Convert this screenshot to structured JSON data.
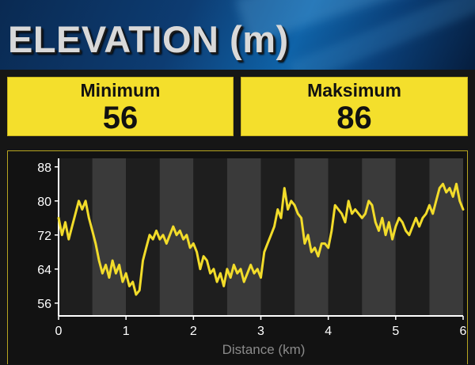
{
  "header": {
    "title": "ELEVATION (m)"
  },
  "stats": {
    "min_label": "Minimum",
    "min_value": "56",
    "max_label": "Maksimum",
    "max_value": "86"
  },
  "colors": {
    "accent": "#f4df2c",
    "line": "#f2dc2a",
    "band_dark": "#1e1e1e",
    "band_light": "#3a3a3a",
    "axis_text": "#ffffff",
    "xlabel_text": "#8a8a8a"
  },
  "chart_data": {
    "type": "line",
    "title": "",
    "xlabel": "Distance (km)",
    "ylabel": "",
    "xlim": [
      0,
      6
    ],
    "ylim": [
      53,
      90
    ],
    "xticks": [
      "0",
      "1",
      "2",
      "3",
      "4",
      "5",
      "6"
    ],
    "yticks": [
      "56",
      "64",
      "72",
      "80",
      "88"
    ],
    "grid": "alternating vertical bands every 0.5 km",
    "series": [
      {
        "x": [
          0,
          0.05,
          0.1,
          0.15,
          0.2,
          0.25,
          0.3,
          0.35,
          0.4,
          0.45,
          0.5,
          0.55,
          0.6,
          0.65,
          0.7,
          0.75,
          0.8,
          0.85,
          0.9,
          0.95,
          1.0,
          1.05,
          1.1,
          1.15,
          1.2,
          1.25,
          1.3,
          1.35,
          1.4,
          1.45,
          1.5,
          1.55,
          1.6,
          1.65,
          1.7,
          1.75,
          1.8,
          1.85,
          1.9,
          1.95,
          2.0,
          2.05,
          2.1,
          2.15,
          2.2,
          2.25,
          2.3,
          2.35,
          2.4,
          2.45,
          2.5,
          2.55,
          2.6,
          2.65,
          2.7,
          2.75,
          2.8,
          2.85,
          2.9,
          2.95,
          3.0,
          3.05,
          3.1,
          3.15,
          3.2,
          3.25,
          3.3,
          3.35,
          3.4,
          3.45,
          3.5,
          3.55,
          3.6,
          3.65,
          3.7,
          3.75,
          3.8,
          3.85,
          3.9,
          3.95,
          4.0,
          4.05,
          4.1,
          4.15,
          4.2,
          4.25,
          4.3,
          4.35,
          4.4,
          4.45,
          4.5,
          4.55,
          4.6,
          4.65,
          4.7,
          4.75,
          4.8,
          4.85,
          4.9,
          4.95,
          5.0,
          5.05,
          5.1,
          5.15,
          5.2,
          5.25,
          5.3,
          5.35,
          5.4,
          5.45,
          5.5,
          5.55,
          5.6,
          5.65,
          5.7,
          5.75,
          5.8,
          5.85,
          5.9,
          5.95,
          6.0
        ],
        "values": [
          76,
          72,
          75,
          71,
          74,
          77,
          80,
          78,
          80,
          76,
          73,
          70,
          66,
          63,
          65,
          62,
          66,
          63,
          65,
          61,
          63,
          60,
          61,
          58,
          59,
          66,
          69,
          72,
          71,
          73,
          71,
          72,
          70,
          72,
          74,
          72,
          73,
          71,
          72,
          69,
          70,
          68,
          64,
          67,
          66,
          63,
          64,
          61,
          63,
          60,
          64,
          62,
          65,
          63,
          64,
          61,
          63,
          65,
          63,
          64,
          62,
          68,
          70,
          72,
          74,
          78,
          76,
          83,
          78,
          80,
          79,
          77,
          76,
          70,
          72,
          68,
          69,
          67,
          70,
          70,
          69,
          73,
          79,
          78,
          77,
          75,
          80,
          77,
          78,
          77,
          76,
          77,
          80,
          79,
          75,
          73,
          76,
          72,
          75,
          71,
          74,
          76,
          75,
          73,
          72,
          74,
          76,
          74,
          76,
          77,
          79,
          77,
          80,
          83,
          84,
          82,
          83,
          81,
          84,
          80,
          78
        ]
      }
    ]
  }
}
